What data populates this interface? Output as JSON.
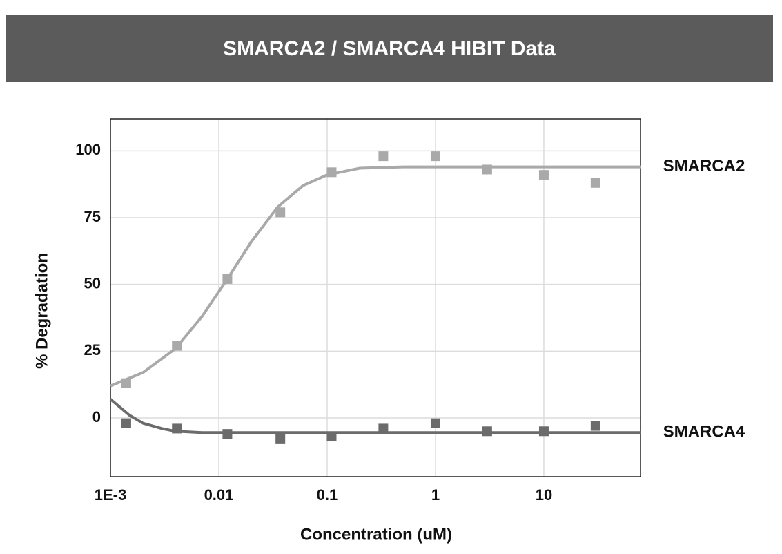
{
  "chart_data": {
    "type": "scatter",
    "title": "SMARCA2 / SMARCA4 HIBIT Data",
    "xlabel": "Concentration (uM)",
    "ylabel": "% Degradation",
    "xlog": true,
    "xlim": [
      0.001,
      78
    ],
    "xticks": [
      {
        "value": 0.001,
        "label": "1E-3"
      },
      0.01,
      0.1,
      1,
      10
    ],
    "ylim": [
      -22,
      112
    ],
    "yticks": [
      0,
      25,
      50,
      75,
      100
    ],
    "grid": true,
    "series": [
      {
        "name": "SMARCA2",
        "color": "#a9a9a9",
        "x": [
          0.0014,
          0.0041,
          0.012,
          0.037,
          0.11,
          0.33,
          1,
          3,
          10,
          30
        ],
        "values": [
          13,
          27,
          52,
          77,
          92,
          98,
          98,
          93,
          91,
          88
        ],
        "fit": {
          "x": [
            0.001,
            0.002,
            0.004,
            0.007,
            0.012,
            0.02,
            0.035,
            0.06,
            0.1,
            0.2,
            0.5,
            1,
            10,
            78
          ],
          "values": [
            12,
            17,
            26,
            38,
            52,
            66,
            79,
            87,
            91,
            93.5,
            94,
            94,
            94,
            94
          ]
        }
      },
      {
        "name": "SMARCA4",
        "color": "#6b6b6b",
        "x": [
          0.0014,
          0.0041,
          0.012,
          0.037,
          0.11,
          0.33,
          1,
          3,
          10,
          30
        ],
        "values": [
          -2,
          -4,
          -6,
          -8,
          -7,
          -4,
          -2,
          -5,
          -5,
          -3
        ],
        "fit": {
          "x": [
            0.001,
            0.0015,
            0.002,
            0.003,
            0.004,
            0.007,
            0.012,
            0.1,
            1,
            10,
            78
          ],
          "values": [
            7,
            1,
            -2,
            -4,
            -5,
            -5.5,
            -5.5,
            -5.5,
            -5.5,
            -5.5,
            -5.5
          ]
        }
      }
    ]
  }
}
